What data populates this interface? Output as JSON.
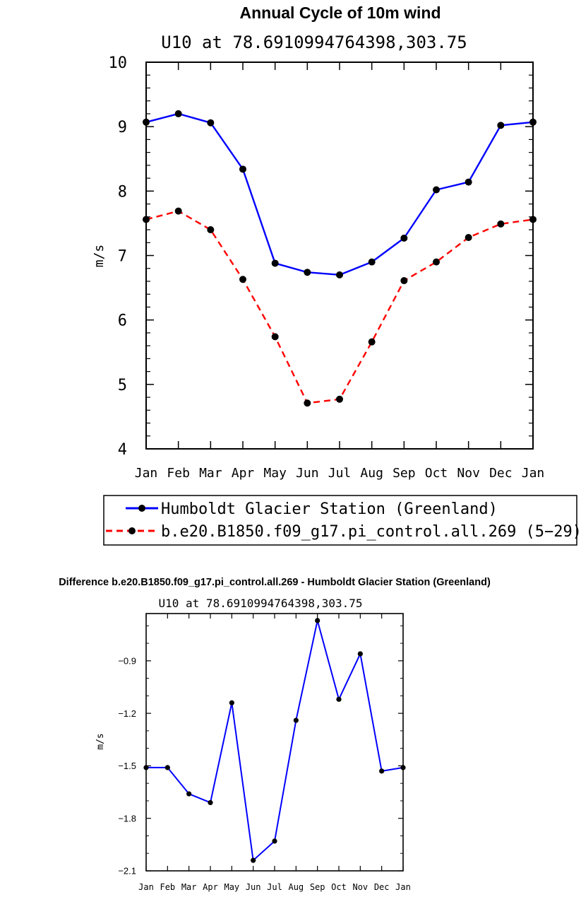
{
  "chart_data": [
    {
      "type": "line",
      "title": "Annual Cycle of 10m wind",
      "subtitle": "U10 at 78.6910994764398,303.75",
      "xlabel": "",
      "ylabel": "m/s",
      "categories": [
        "Jan",
        "Feb",
        "Mar",
        "Apr",
        "May",
        "Jun",
        "Jul",
        "Aug",
        "Sep",
        "Oct",
        "Nov",
        "Dec",
        "Jan"
      ],
      "ylim": [
        4,
        10
      ],
      "yticks": [
        4,
        5,
        6,
        7,
        8,
        9,
        10
      ],
      "ytick_labels": [
        "4",
        "5",
        "6",
        "7",
        "8",
        "9",
        "10"
      ],
      "grid": false,
      "legend_placement": "below",
      "series": [
        {
          "name": "Humboldt Glacier Station (Greenland)",
          "color": "#0000ff",
          "dash": "solid",
          "values": [
            9.07,
            9.2,
            9.06,
            8.34,
            6.88,
            6.74,
            6.7,
            6.9,
            7.27,
            8.02,
            8.14,
            9.02,
            9.07
          ]
        },
        {
          "name": "b.e20.B1850.f09_g17.pi_control.all.269 (5−29)",
          "color": "#ff0000",
          "dash": "dashed",
          "values": [
            7.56,
            7.69,
            7.4,
            6.63,
            5.74,
            4.71,
            4.77,
            5.66,
            6.61,
            6.9,
            7.28,
            7.49,
            7.56
          ]
        }
      ]
    },
    {
      "type": "line",
      "title": "Difference b.e20.B1850.f09_g17.pi_control.all.269 - Humboldt Glacier Station (Greenland)",
      "subtitle": "U10 at 78.6910994764398,303.75",
      "xlabel": "",
      "ylabel": "m/s",
      "categories": [
        "Jan",
        "Feb",
        "Mar",
        "Apr",
        "May",
        "Jun",
        "Jul",
        "Aug",
        "Sep",
        "Oct",
        "Nov",
        "Dec",
        "Jan"
      ],
      "ylim": [
        -2.1,
        -0.63
      ],
      "yticks": [
        -2.1,
        -1.8,
        -1.5,
        -1.2,
        -0.9
      ],
      "ytick_labels": [
        "−2.1",
        "−1.8",
        "−1.5",
        "−1.2",
        "−0.9"
      ],
      "grid": false,
      "series": [
        {
          "color": "#0000ff",
          "dash": "solid",
          "values": [
            -1.51,
            -1.51,
            -1.66,
            -1.71,
            -1.14,
            -2.04,
            -1.93,
            -1.24,
            -0.67,
            -1.12,
            -0.86,
            -1.53,
            -1.51
          ]
        }
      ]
    }
  ]
}
